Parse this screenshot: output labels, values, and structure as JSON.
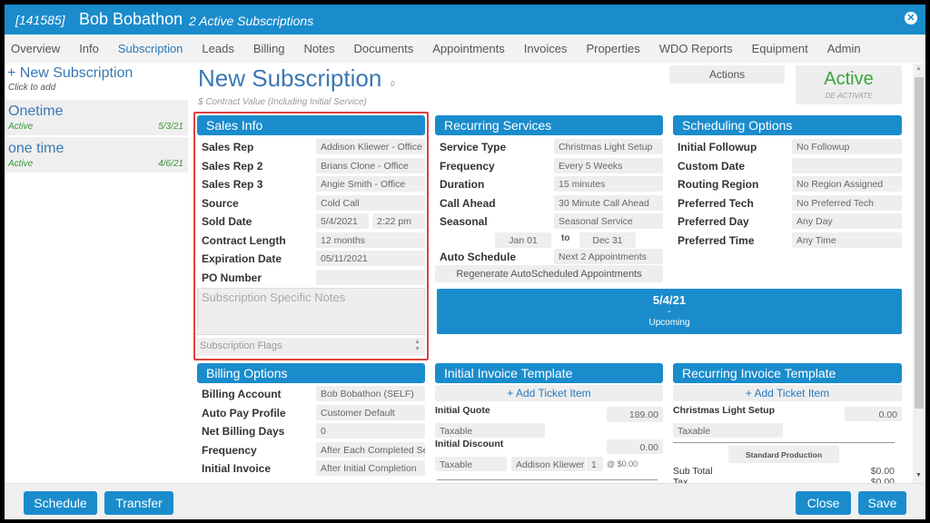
{
  "header": {
    "customer_id": "[141585]",
    "customer_name": "Bob Bobathon",
    "subtitle": "2 Active Subscriptions",
    "close_icon": "close-circle-icon"
  },
  "nav": [
    "Overview",
    "Info",
    "Subscription",
    "Leads",
    "Billing",
    "Notes",
    "Documents",
    "Appointments",
    "Invoices",
    "Properties",
    "WDO Reports",
    "Equipment",
    "Admin"
  ],
  "nav_active": "Subscription",
  "sidebar": {
    "new_label": "+ New Subscription",
    "new_hint": "Click to add",
    "items": [
      {
        "name": "Onetime",
        "status": "Active",
        "date": "5/3/21"
      },
      {
        "name": "one time",
        "status": "Active",
        "date": "4/6/21"
      }
    ]
  },
  "main": {
    "title": "New Subscription",
    "title_count": "0",
    "contract_value": "$ Contract Value (Including Initial Service)",
    "actions_label": "Actions",
    "status": "Active",
    "deactivate_label": "DE-ACTIVATE"
  },
  "sales_info": {
    "title": "Sales Info",
    "rows": [
      {
        "label": "Sales Rep",
        "value": "Addison Kliewer - Office"
      },
      {
        "label": "Sales Rep 2",
        "value": "Brians Clone - Office"
      },
      {
        "label": "Sales Rep 3",
        "value": "Angie Smith - Office"
      },
      {
        "label": "Source",
        "value": "Cold Call"
      },
      {
        "label": "Sold Date",
        "value": "5/4/2021",
        "value2": "2:22 pm"
      },
      {
        "label": "Contract Length",
        "value": "12 months"
      },
      {
        "label": "Expiration Date",
        "value": "05/11/2021"
      },
      {
        "label": "PO Number",
        "value": ""
      }
    ],
    "notes_placeholder": "Subscription Specific Notes",
    "flags_placeholder": "Subscription Flags"
  },
  "recurring_services": {
    "title": "Recurring Services",
    "rows": [
      {
        "label": "Service Type",
        "value": "Christmas Light Setup"
      },
      {
        "label": "Frequency",
        "value": "Every 5 Weeks"
      },
      {
        "label": "Duration",
        "value": "15 minutes"
      },
      {
        "label": "Call Ahead",
        "value": "30 Minute Call Ahead"
      },
      {
        "label": "Seasonal",
        "value": "Seasonal Service"
      }
    ],
    "season_start": "Jan 01",
    "season_to": "to",
    "season_end": "Dec 31",
    "auto_schedule_label": "Auto Schedule",
    "auto_schedule_value": "Next 2 Appointments",
    "regenerate_label": "Regenerate AutoScheduled Appointments"
  },
  "scheduling_options": {
    "title": "Scheduling Options",
    "rows": [
      {
        "label": "Initial Followup",
        "value": "No Followup"
      },
      {
        "label": "Custom Date",
        "value": ""
      },
      {
        "label": "Routing Region",
        "value": "No Region Assigned"
      },
      {
        "label": "Preferred Tech",
        "value": "No Preferred Tech"
      },
      {
        "label": "Preferred Day",
        "value": "Any Day"
      },
      {
        "label": "Preferred Time",
        "value": "Any Time"
      }
    ]
  },
  "upcoming": {
    "date": "5/4/21",
    "dash": "-",
    "status": "Upcoming"
  },
  "billing_options": {
    "title": "Billing Options",
    "rows": [
      {
        "label": "Billing Account",
        "value": "Bob Bobathon (SELF)"
      },
      {
        "label": "Auto Pay Profile",
        "value": "Customer Default"
      },
      {
        "label": "Net Billing Days",
        "value": "0"
      },
      {
        "label": "Frequency",
        "value": "After Each Completed Service"
      },
      {
        "label": "Initial Invoice",
        "value": "After Initial Completion"
      }
    ]
  },
  "initial_invoice": {
    "title": "Initial Invoice Template",
    "add_label": "+ Add Ticket Item",
    "quote_label": "Initial Quote",
    "quote_value": "189.00",
    "quote_tax": "Taxable",
    "discount_label": "Initial Discount",
    "discount_value": "0.00",
    "discount_tax": "Taxable",
    "rep": "Addison Kliewer",
    "qty": "1",
    "at_price": "@ $0.00"
  },
  "recurring_invoice": {
    "title": "Recurring Invoice Template",
    "add_label": "+ Add Ticket Item",
    "item_label": "Christmas Light Setup",
    "item_value": "0.00",
    "item_tax": "Taxable",
    "production_label": "Standard Production",
    "subtotal_label": "Sub Total",
    "subtotal_value": "$0.00",
    "tax_label": "Tax",
    "tax_value": "$0.00"
  },
  "footer": {
    "schedule": "Schedule",
    "transfer": "Transfer",
    "close": "Close",
    "save": "Save"
  },
  "colors": {
    "primary": "#1a8ccc",
    "active_green": "#3aa53a",
    "highlight": "#e04040"
  }
}
